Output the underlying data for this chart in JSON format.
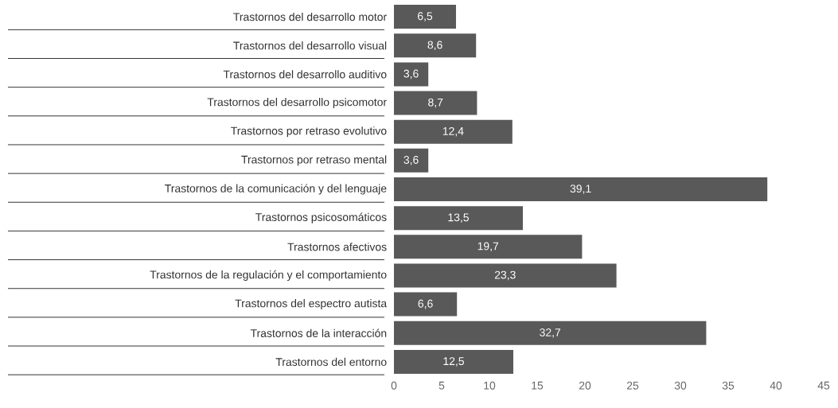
{
  "chart_data": {
    "type": "bar",
    "orientation": "horizontal",
    "categories": [
      "Trastornos del desarrollo motor",
      "Trastornos del desarrollo visual",
      "Trastornos del desarrollo auditivo",
      "Trastornos del desarrollo psicomotor",
      "Trastornos por retraso evolutivo",
      "Trastornos por retraso mental",
      "Trastornos de la comunicación y del lenguaje",
      "Trastornos psicosomáticos",
      "Trastornos afectivos",
      "Trastornos de la regulación y el comportamiento",
      "Trastornos del espectro autista",
      "Trastornos de la interacción",
      "Trastornos del entorno"
    ],
    "values": [
      6.5,
      8.6,
      3.6,
      8.7,
      12.4,
      3.6,
      39.1,
      13.5,
      19.7,
      23.3,
      6.6,
      32.7,
      12.5
    ],
    "value_labels": [
      "6,5",
      "8,6",
      "3,6",
      "8,7",
      "12,4",
      "3,6",
      "39,1",
      "13,5",
      "19,7",
      "23,3",
      "6,6",
      "32,7",
      "12,5"
    ],
    "color": "#595959",
    "xlim": [
      0,
      45
    ],
    "xticks": [
      0,
      5,
      10,
      15,
      20,
      25,
      30,
      35,
      40,
      45
    ],
    "grid": false
  }
}
